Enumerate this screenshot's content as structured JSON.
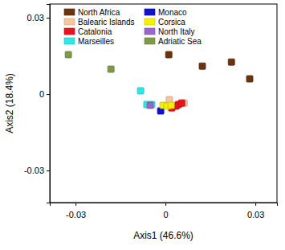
{
  "chart_data": {
    "type": "scatter",
    "x_label": "Axis1 (46.6%)",
    "y_label": "Axis2 (18.4%)",
    "xlim": [
      -0.0386,
      0.0372
    ],
    "ylim": [
      -0.0426,
      0.0354
    ],
    "xticks": [
      -0.03,
      0,
      0.03
    ],
    "yticks": [
      -0.03,
      0,
      0.03
    ],
    "grid": false,
    "legend": "top",
    "marker": "square",
    "series": [
      {
        "name": "North Africa",
        "color": "#6b3310",
        "x": [
          0.0011,
          0.0123,
          0.022,
          0.0281
        ],
        "values": [
          0.0155,
          0.011,
          0.0126,
          0.006
        ]
      },
      {
        "name": "Balearic Islands",
        "color": "#f5c6a0",
        "x": [
          0.0013,
          0.0062
        ],
        "values": [
          -0.0022,
          -0.0035
        ]
      },
      {
        "name": "Catalonia",
        "color": "#e8141a",
        "x": [
          0.0021,
          0.0035,
          0.0043,
          0.0054
        ],
        "values": [
          -0.0054,
          -0.0047,
          -0.0041,
          -0.0035
        ]
      },
      {
        "name": "Marseilles",
        "color": "#2ee8e8",
        "x": [
          -0.0083,
          -0.0062,
          -0.0046
        ],
        "values": [
          0.0013,
          -0.0041,
          -0.0041
        ]
      },
      {
        "name": "Monaco",
        "color": "#1010d0",
        "x": [
          -0.0016
        ],
        "values": [
          -0.0066
        ]
      },
      {
        "name": "Corsica",
        "color": "#f5f000",
        "x": [
          -0.0008,
          0.0005,
          0.0019
        ],
        "values": [
          -0.0044,
          -0.0047,
          -0.0044
        ]
      },
      {
        "name": "North Italy",
        "color": "#9966cc",
        "x": [
          -0.0051
        ],
        "values": [
          -0.0044
        ]
      },
      {
        "name": "Adriatic Sea",
        "color": "#7f9a48",
        "x": [
          -0.0324,
          -0.0182
        ],
        "values": [
          0.0155,
          0.0098
        ]
      }
    ]
  }
}
